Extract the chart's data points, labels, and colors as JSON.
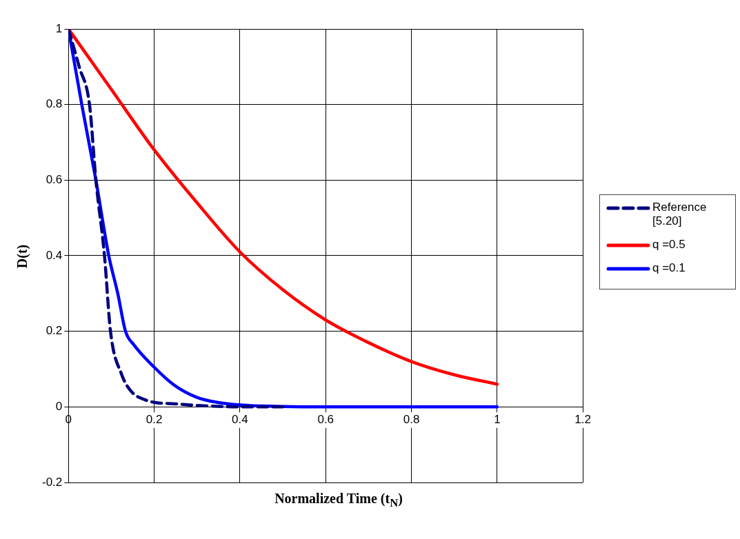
{
  "chart_data": {
    "type": "line",
    "xlabel": "Normalized Time (t$_{N}$)",
    "ylabel": "D(t)",
    "xlim": [
      0,
      1.2
    ],
    "xticks": [
      0,
      0.2,
      0.4,
      0.6,
      0.8,
      1,
      1.2
    ],
    "ylim": [
      -0.2,
      1
    ],
    "yticks": [
      -0.2,
      0,
      0.2,
      0.4,
      0.6,
      0.8,
      1
    ],
    "grid": true,
    "legend": "right",
    "marker": "none",
    "series": [
      {
        "name": "Reference [5.20]",
        "color": "#000080",
        "line_style": "dashed",
        "x": [
          0,
          0.025,
          0.049,
          0.064,
          0.084,
          0.098,
          0.124,
          0.148,
          0.178,
          0.2,
          0.25,
          0.3,
          0.4,
          0.5
        ],
        "values": [
          1,
          0.9,
          0.8,
          0.6,
          0.4,
          0.2,
          0.086,
          0.039,
          0.019,
          0.012,
          0.008,
          0.004,
          0,
          0
        ]
      },
      {
        "name": "q =0.5",
        "color": "#ff0000",
        "line_style": "solid",
        "x": [
          0,
          0.1,
          0.2,
          0.3,
          0.4,
          0.5,
          0.6,
          0.7,
          0.8,
          0.9,
          1
        ],
        "values": [
          1,
          0.84,
          0.68,
          0.54,
          0.41,
          0.31,
          0.23,
          0.17,
          0.12,
          0.085,
          0.06
        ]
      },
      {
        "name": "q =0.1",
        "color": "#0000ff",
        "line_style": "solid",
        "x": [
          0,
          0.031,
          0.064,
          0.094,
          0.115,
          0.133,
          0.152,
          0.2,
          0.245,
          0.3,
          0.347,
          0.4,
          0.5,
          0.6,
          0.8,
          1
        ],
        "values": [
          1,
          0.8,
          0.6,
          0.4,
          0.3,
          0.2,
          0.165,
          0.105,
          0.059,
          0.025,
          0.012,
          0.005,
          0.001,
          0,
          0,
          0
        ]
      }
    ]
  }
}
